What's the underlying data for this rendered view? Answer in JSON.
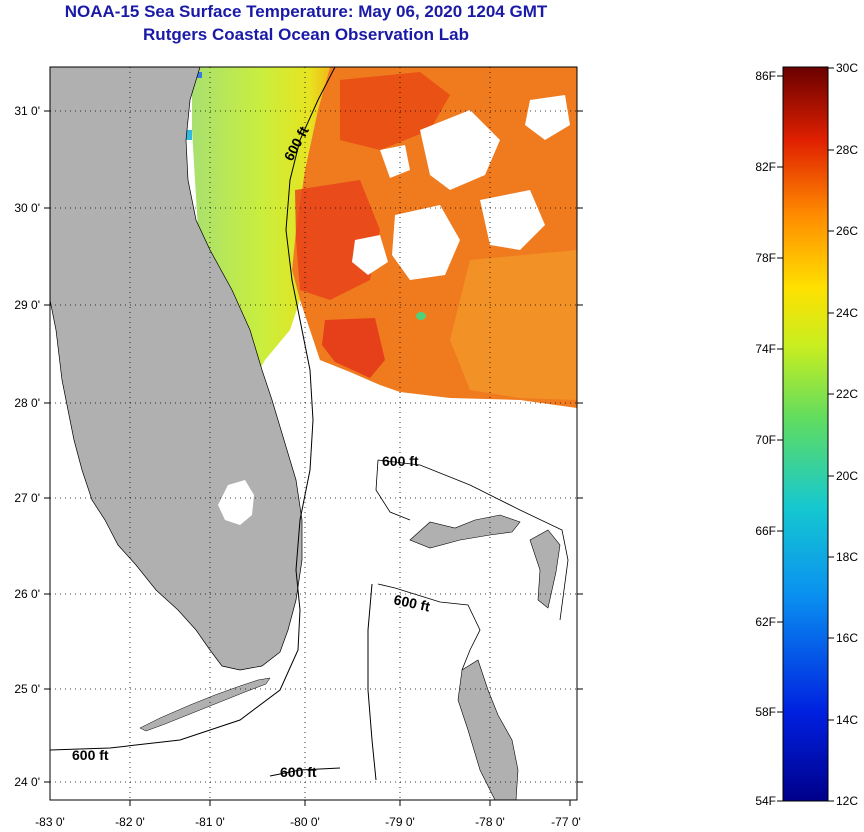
{
  "title": {
    "line1": "NOAA-15 Sea Surface Temperature:  May 06, 2020 1204 GMT",
    "line2": "Rutgers Coastal Ocean Observation Lab"
  },
  "map": {
    "lon_ticks": [
      "-83 0'",
      "-82 0'",
      "-81 0'",
      "-80 0'",
      "-79 0'",
      "-78 0'",
      "-77 0'"
    ],
    "lat_ticks": [
      "31 0'",
      "30 0'",
      "29 0'",
      "28 0'",
      "27 0'",
      "26 0'",
      "25 0'",
      "24 0'"
    ],
    "contour_labels": [
      "600 ft",
      "600 ft",
      "600 ft",
      "600 ft",
      "600 ft"
    ],
    "colors": {
      "land": "#b0b0b0",
      "water_nodata": "#ffffff",
      "cold_band": "#b7e85a",
      "warm_band": "#f07a1e"
    }
  },
  "colorbar": {
    "fahrenheit_labels": [
      "86F",
      "82F",
      "78F",
      "74F",
      "70F",
      "66F",
      "62F",
      "58F",
      "54F"
    ],
    "celsius_labels": [
      "30C",
      "28C",
      "26C",
      "24C",
      "22C",
      "20C",
      "18C",
      "16C",
      "14C",
      "12C"
    ]
  }
}
